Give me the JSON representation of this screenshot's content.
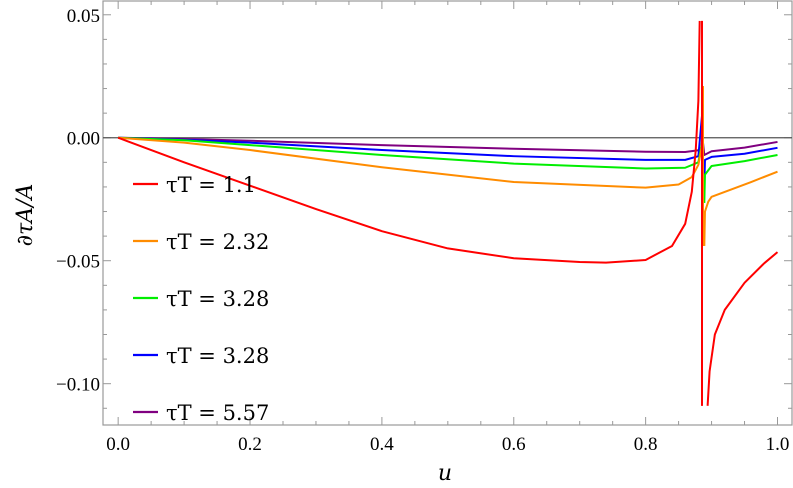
{
  "chart_data": {
    "type": "line",
    "title": "",
    "xlabel": "u",
    "ylabel": "∂τA/A",
    "xlim": [
      -0.023,
      1.022
    ],
    "ylim": [
      -0.1168,
      0.0556
    ],
    "xticks": [
      0.0,
      0.2,
      0.4,
      0.6,
      0.8,
      1.0
    ],
    "xtick_labels": [
      "0.0",
      "0.2",
      "0.4",
      "0.6",
      "0.8",
      "1.0"
    ],
    "yticks": [
      0.05,
      0.0,
      -0.05,
      -0.1
    ],
    "ytick_labels": [
      "0.05",
      "0.00",
      "−0.05",
      "−0.10"
    ],
    "grid": false,
    "zero_line": true,
    "legend_position": "left",
    "series": [
      {
        "name": "τT = 1.1",
        "color": "#ff0000",
        "segments": [
          [
            [
              0,
              0
            ],
            [
              0.1,
              -0.01
            ],
            [
              0.2,
              -0.0195
            ],
            [
              0.3,
              -0.029
            ],
            [
              0.4,
              -0.038
            ],
            [
              0.5,
              -0.045
            ],
            [
              0.6,
              -0.049
            ],
            [
              0.7,
              -0.0505
            ],
            [
              0.74,
              -0.0508
            ],
            [
              0.8,
              -0.0497
            ],
            [
              0.84,
              -0.044
            ],
            [
              0.86,
              -0.035
            ],
            [
              0.87,
              -0.022
            ],
            [
              0.876,
              -0.005
            ],
            [
              0.88,
              0.015
            ],
            [
              0.882,
              0.0475
            ]
          ],
          [
            [
              0.8855,
              0.0475
            ],
            [
              0.8855,
              -0.109
            ]
          ],
          [
            [
              0.894,
              -0.109
            ],
            [
              0.897,
              -0.095
            ],
            [
              0.905,
              -0.08
            ],
            [
              0.92,
              -0.07
            ],
            [
              0.95,
              -0.059
            ],
            [
              0.98,
              -0.051
            ],
            [
              1.0,
              -0.0465
            ]
          ]
        ]
      },
      {
        "name": "τT = 2.32",
        "color": "#ff8c00",
        "segments": [
          [
            [
              0,
              0
            ],
            [
              0.1,
              -0.002
            ],
            [
              0.2,
              -0.005
            ],
            [
              0.4,
              -0.012
            ],
            [
              0.6,
              -0.018
            ],
            [
              0.8,
              -0.0203
            ],
            [
              0.85,
              -0.019
            ],
            [
              0.87,
              -0.016
            ],
            [
              0.88,
              -0.011
            ],
            [
              0.885,
              -0.004
            ],
            [
              0.887,
              0.021
            ]
          ],
          [
            [
              0.887,
              0.021
            ],
            [
              0.887,
              -0.044
            ]
          ],
          [
            [
              0.889,
              -0.044
            ],
            [
              0.89,
              -0.03
            ],
            [
              0.895,
              -0.026
            ],
            [
              0.9,
              -0.024
            ],
            [
              0.93,
              -0.021
            ],
            [
              0.96,
              -0.018
            ],
            [
              1.0,
              -0.0138
            ]
          ]
        ]
      },
      {
        "name": "τT = 3.28",
        "color": "#00ee00",
        "segments": [
          [
            [
              0,
              0
            ],
            [
              0.1,
              -0.001
            ],
            [
              0.2,
              -0.003
            ],
            [
              0.4,
              -0.007
            ],
            [
              0.6,
              -0.0105
            ],
            [
              0.8,
              -0.0125
            ],
            [
              0.86,
              -0.0122
            ],
            [
              0.88,
              -0.01
            ],
            [
              0.887,
              0.0
            ]
          ],
          [
            [
              0.887,
              0.0
            ],
            [
              0.887,
              -0.0265
            ]
          ],
          [
            [
              0.889,
              -0.0265
            ],
            [
              0.89,
              -0.015
            ],
            [
              0.9,
              -0.0115
            ],
            [
              0.95,
              -0.0095
            ],
            [
              1.0,
              -0.007
            ]
          ]
        ]
      },
      {
        "name": "τT = 3.28",
        "color": "#0000ff",
        "segments": [
          [
            [
              0,
              0
            ],
            [
              0.1,
              -0.0008
            ],
            [
              0.2,
              -0.002
            ],
            [
              0.4,
              -0.005
            ],
            [
              0.6,
              -0.0075
            ],
            [
              0.8,
              -0.009
            ],
            [
              0.86,
              -0.009
            ],
            [
              0.88,
              -0.0075
            ],
            [
              0.887,
              0.0134
            ]
          ],
          [
            [
              0.887,
              0.0134
            ],
            [
              0.887,
              -0.0195
            ]
          ],
          [
            [
              0.889,
              -0.0195
            ],
            [
              0.89,
              -0.009
            ],
            [
              0.9,
              -0.0078
            ],
            [
              0.95,
              -0.0065
            ],
            [
              1.0,
              -0.0041
            ]
          ]
        ]
      },
      {
        "name": "τT = 5.57",
        "color": "#800080",
        "segments": [
          [
            [
              0,
              0
            ],
            [
              0.1,
              -0.0005
            ],
            [
              0.2,
              -0.0012
            ],
            [
              0.4,
              -0.003
            ],
            [
              0.6,
              -0.0045
            ],
            [
              0.8,
              -0.0057
            ],
            [
              0.86,
              -0.0058
            ],
            [
              0.883,
              -0.005
            ],
            [
              0.887,
              -0.002
            ],
            [
              0.889,
              -0.007
            ],
            [
              0.9,
              -0.0055
            ],
            [
              0.95,
              -0.004
            ],
            [
              1.0,
              -0.0017
            ]
          ]
        ]
      }
    ]
  }
}
